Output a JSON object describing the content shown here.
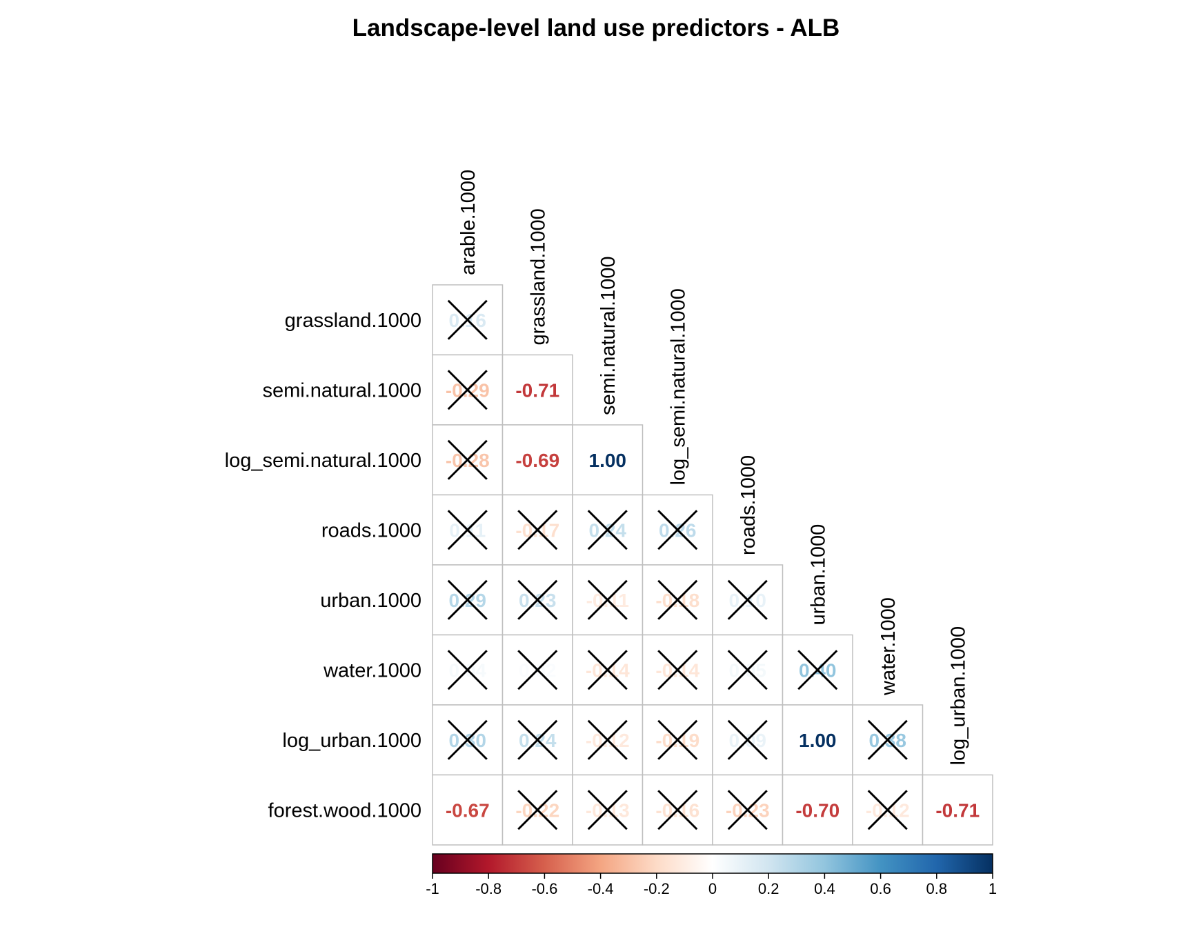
{
  "chart_data": {
    "type": "heatmap",
    "title": "Landscape-level land use predictors - ALB",
    "column_labels": [
      "arable.1000",
      "grassland.1000",
      "semi.natural.1000",
      "log_semi.natural.1000",
      "roads.1000",
      "urban.1000",
      "water.1000",
      "log_urban.1000"
    ],
    "row_labels": [
      "grassland.1000",
      "semi.natural.1000",
      "log_semi.natural.1000",
      "roads.1000",
      "urban.1000",
      "water.1000",
      "log_urban.1000",
      "forest.wood.1000"
    ],
    "values": [
      [
        0.16
      ],
      [
        -0.29,
        -0.71
      ],
      [
        -0.28,
        -0.69,
        1.0
      ],
      [
        0.11,
        -0.17,
        0.24,
        0.26
      ],
      [
        0.29,
        0.23,
        -0.11,
        -0.18,
        0.1
      ],
      [
        0.04,
        0.02,
        -0.14,
        -0.14,
        0.05,
        0.4
      ],
      [
        0.3,
        0.24,
        -0.12,
        -0.19,
        0.09,
        1.0,
        0.38
      ],
      [
        -0.67,
        -0.22,
        -0.13,
        -0.16,
        -0.23,
        -0.7,
        -0.12,
        -0.71
      ]
    ],
    "insignificant": [
      [
        true
      ],
      [
        true,
        false
      ],
      [
        true,
        false,
        false
      ],
      [
        true,
        true,
        true,
        true
      ],
      [
        true,
        true,
        true,
        true,
        true
      ],
      [
        true,
        true,
        true,
        true,
        true,
        true
      ],
      [
        true,
        true,
        true,
        true,
        true,
        false,
        true
      ],
      [
        false,
        true,
        true,
        true,
        true,
        false,
        true,
        false
      ]
    ],
    "color_scale": {
      "range": [
        -1,
        1
      ],
      "ticks": [
        "-1",
        "-0.8",
        "-0.6",
        "-0.4",
        "-0.2",
        "0",
        "0.2",
        "0.4",
        "0.6",
        "0.8",
        "1"
      ],
      "colors": [
        "#67001F",
        "#B2182B",
        "#D6604D",
        "#F4A582",
        "#FDDBC7",
        "#FFFFFF",
        "#D1E5F0",
        "#92C5DE",
        "#4393C3",
        "#2166AC",
        "#053061"
      ]
    },
    "legend_position": "bottom"
  }
}
